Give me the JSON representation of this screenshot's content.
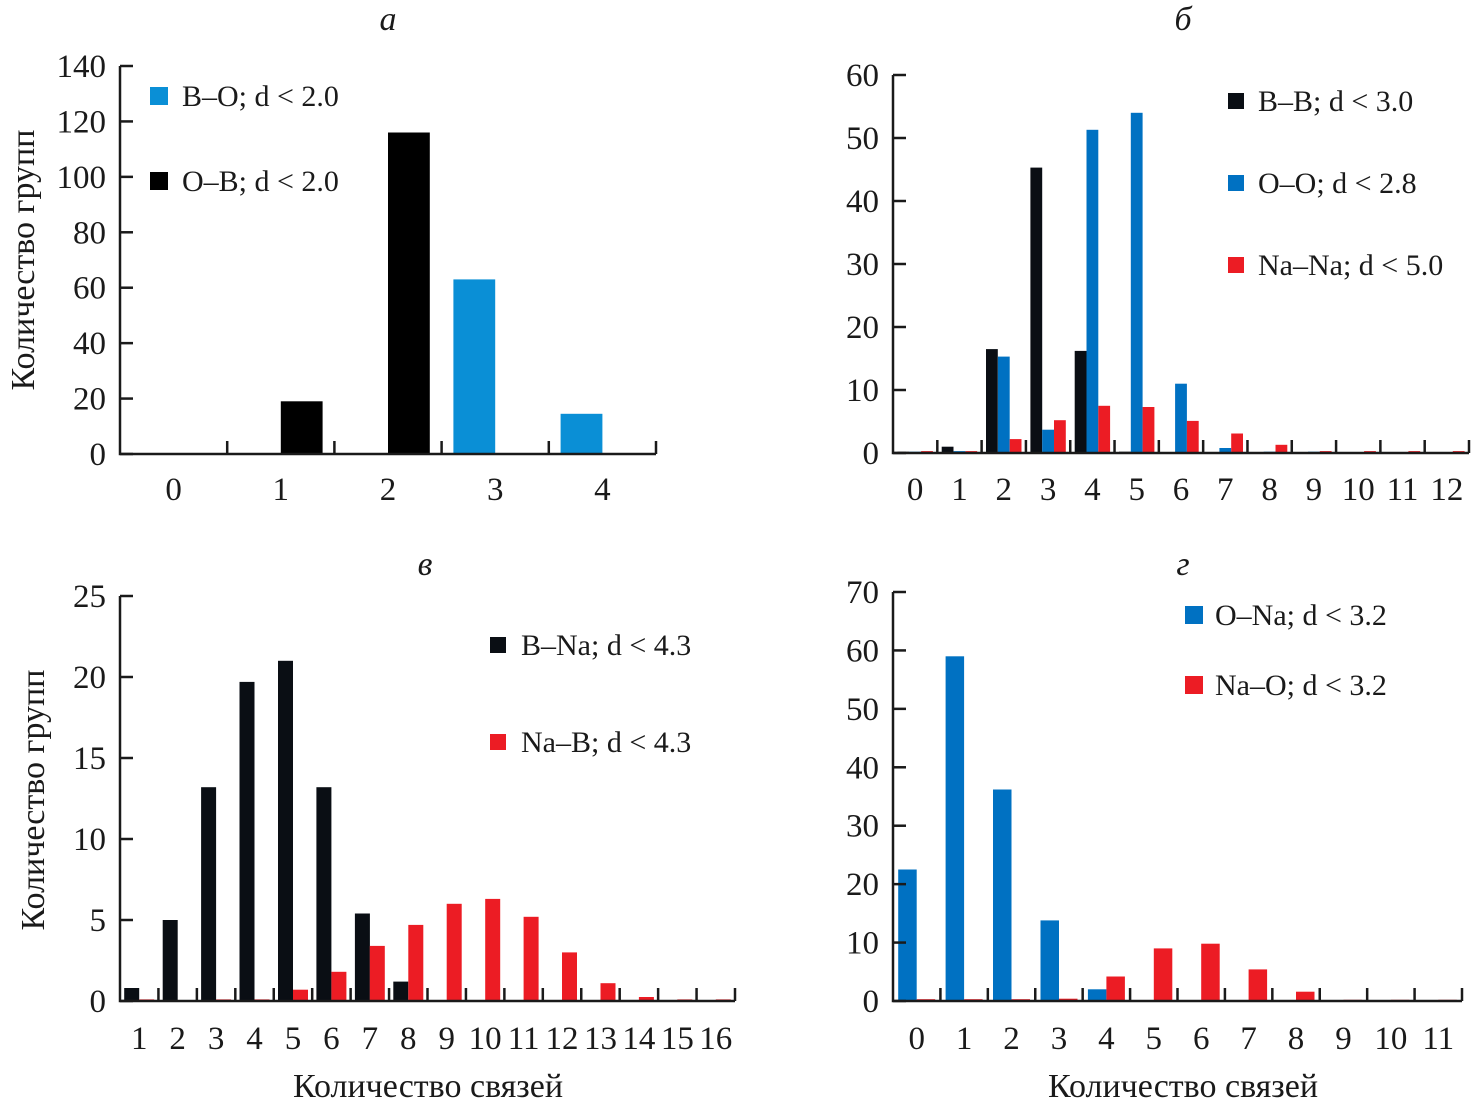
{
  "chart_data": [
    {
      "type": "bar",
      "panel": "a",
      "title": "а",
      "xlabel": "",
      "ylabel": "Количество групп",
      "ylim": [
        0,
        140
      ],
      "yticks": [
        0,
        20,
        40,
        60,
        80,
        100,
        120,
        140
      ],
      "categories": [
        "0",
        "1",
        "2",
        "3",
        "4"
      ],
      "legend_position": "top-left",
      "series": [
        {
          "name": "B–O; d < 2.0",
          "color": "#0a8fd6",
          "values": [
            0.2,
            0,
            0.2,
            63,
            14.5
          ]
        },
        {
          "name": "O–B; d < 2.0",
          "color": "#000000",
          "values": [
            0.2,
            19,
            116,
            0.3,
            0
          ]
        }
      ]
    },
    {
      "type": "bar",
      "panel": "b",
      "title": "б",
      "xlabel": "",
      "ylabel": "",
      "ylim": [
        0,
        60
      ],
      "yticks": [
        0,
        10,
        20,
        30,
        40,
        50,
        60
      ],
      "categories": [
        "0",
        "1",
        "2",
        "3",
        "4",
        "5",
        "6",
        "7",
        "8",
        "9",
        "10",
        "11",
        "12"
      ],
      "legend_position": "top-right",
      "series": [
        {
          "name": "B–B; d < 3.0",
          "color": "#0a0e14",
          "values": [
            0.2,
            1.0,
            16.5,
            45.3,
            16.2,
            0.2,
            0.1,
            0,
            0,
            0,
            0,
            0,
            0
          ]
        },
        {
          "name": "O–O; d < 2.8",
          "color": "#0071c2",
          "values": [
            0.2,
            0.3,
            15.3,
            3.7,
            51.3,
            54,
            11,
            0.8,
            0.2,
            0.2,
            0,
            0,
            0
          ]
        },
        {
          "name": "Na–Na; d < 5.0",
          "color": "#ec1c24",
          "values": [
            0.3,
            0.3,
            2.2,
            5.2,
            7.5,
            7.3,
            5.1,
            3.1,
            1.3,
            0.3,
            0.3,
            0.3,
            0.3
          ]
        }
      ]
    },
    {
      "type": "bar",
      "panel": "v",
      "title": "в",
      "xlabel": "Количество связей",
      "ylabel": "Количество групп",
      "ylim": [
        0,
        25
      ],
      "yticks": [
        0,
        5,
        10,
        15,
        20,
        25
      ],
      "categories": [
        "1",
        "2",
        "3",
        "4",
        "5",
        "6",
        "7",
        "8",
        "9",
        "10",
        "11",
        "12",
        "13",
        "14",
        "15",
        "16"
      ],
      "legend_position": "top-right",
      "series": [
        {
          "name": "B–Na; d < 4.3",
          "color": "#0a0e14",
          "values": [
            0.8,
            5.0,
            13.2,
            19.7,
            21.0,
            13.2,
            5.4,
            1.2,
            0.05,
            0.05,
            0,
            0,
            0,
            0,
            0,
            0
          ]
        },
        {
          "name": "Na–B; d < 4.3",
          "color": "#ec1c24",
          "values": [
            0.1,
            0,
            0.1,
            0.1,
            0.7,
            1.8,
            3.4,
            4.7,
            6.0,
            6.3,
            5.2,
            3.0,
            1.1,
            0.25,
            0.1,
            0.1
          ]
        }
      ]
    },
    {
      "type": "bar",
      "panel": "g",
      "title": "г",
      "xlabel": "Количество связей",
      "ylabel": "",
      "ylim": [
        0,
        70
      ],
      "yticks": [
        0,
        10,
        20,
        30,
        40,
        50,
        60,
        70
      ],
      "categories": [
        "0",
        "1",
        "2",
        "3",
        "4",
        "5",
        "6",
        "7",
        "8",
        "9",
        "10",
        "11"
      ],
      "legend_position": "top-right",
      "series": [
        {
          "name": "O–Na; d < 3.2",
          "color": "#0071c2",
          "values": [
            22.5,
            59,
            36.2,
            13.8,
            2.0,
            0.1,
            0.1,
            0,
            0,
            0,
            0,
            0
          ]
        },
        {
          "name": "Na–O; d < 3.2",
          "color": "#ec1c24",
          "values": [
            0.3,
            0.3,
            0.3,
            0.4,
            4.2,
            9.0,
            9.8,
            5.4,
            1.6,
            0.2,
            0.2,
            0.2
          ]
        }
      ]
    }
  ]
}
